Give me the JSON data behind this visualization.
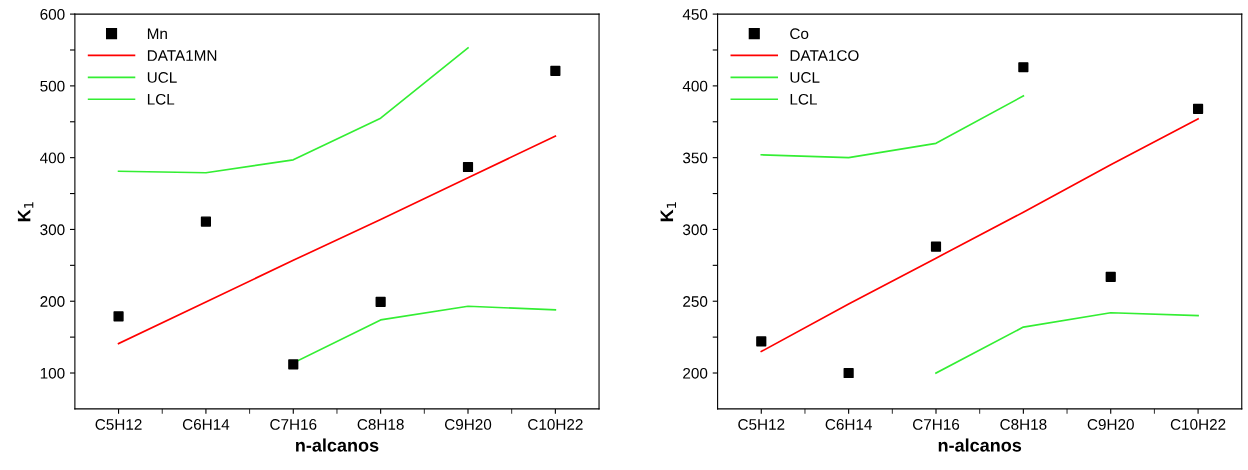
{
  "chart_data": [
    {
      "type": "scatter",
      "xlabel": "n-alcanos",
      "ylabel": "K$_{1}$",
      "ylim": [
        50,
        600
      ],
      "categories": [
        "C5H12",
        "C6H14",
        "C7H16",
        "C8H18",
        "C9H20",
        "C10H22"
      ],
      "yticks": [
        100,
        {
          "value": 150,
          "label": null
        },
        200,
        {
          "value": 250,
          "label": null
        },
        300,
        {
          "value": 350,
          "label": null
        },
        400,
        {
          "value": 450,
          "label": null
        },
        500,
        {
          "value": 550,
          "label": null
        },
        600
      ],
      "legend": "top left",
      "series": [
        {
          "name": "Mn",
          "marker": "square",
          "color": "#000000",
          "values": [
            179,
            311,
            112,
            199,
            387,
            521
          ]
        },
        {
          "name": "DATA1MN",
          "type": "line",
          "color": "#ff0000",
          "values": [
            141,
            199,
            257,
            314,
            372,
            430
          ]
        },
        {
          "name": "UCL",
          "type": "line",
          "color": "#33ee33",
          "values": [
            381,
            379,
            397,
            455,
            553,
            null
          ]
        },
        {
          "name": "LCL",
          "type": "line",
          "color": "#33ee33",
          "values": [
            null,
            null,
            114,
            174,
            193,
            188
          ]
        }
      ]
    },
    {
      "type": "scatter",
      "xlabel": "n-alcanos",
      "ylabel": "K$_{1}$",
      "ylim": [
        175,
        450
      ],
      "categories": [
        "C5H12",
        "C6H14",
        "C7H16",
        "C8H18",
        "C9H20",
        "C10H22"
      ],
      "yticks": [
        200,
        {
          "value": 225,
          "label": null
        },
        250,
        {
          "value": 275,
          "label": null
        },
        300,
        {
          "value": 325,
          "label": null
        },
        350,
        {
          "value": 375,
          "label": null
        },
        400,
        {
          "value": 425,
          "label": null
        },
        450
      ],
      "legend": "top left",
      "series": [
        {
          "name": "Co",
          "marker": "square",
          "color": "#000000",
          "values": [
            222,
            200,
            288,
            413,
            267,
            384
          ]
        },
        {
          "name": "DATA1CO",
          "type": "line",
          "color": "#ff0000",
          "values": [
            215,
            248,
            280,
            312,
            345,
            377
          ]
        },
        {
          "name": "UCL",
          "type": "line",
          "color": "#33ee33",
          "values": [
            352,
            350,
            360,
            393,
            null,
            null
          ]
        },
        {
          "name": "LCL",
          "type": "line",
          "color": "#33ee33",
          "values": [
            null,
            null,
            200,
            232,
            242,
            240
          ]
        }
      ]
    }
  ]
}
